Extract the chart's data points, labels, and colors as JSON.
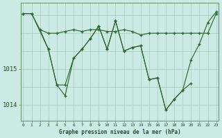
{
  "background_color": "#cceae4",
  "grid_color_major": "#a8c8c0",
  "grid_color_minor": "#b8d8d0",
  "line_color": "#2d6b2d",
  "text_color": "#2d4a2d",
  "xlabel": "Graphe pression niveau de la mer (hPa)",
  "yticks": [
    1014,
    1015
  ],
  "xticks": [
    0,
    1,
    2,
    3,
    4,
    5,
    6,
    7,
    8,
    9,
    10,
    11,
    12,
    13,
    14,
    15,
    16,
    17,
    18,
    19,
    20,
    21,
    22,
    23
  ],
  "ylim": [
    1013.55,
    1016.85
  ],
  "xlim": [
    -0.3,
    23.3
  ],
  "series": [
    {
      "x": [
        0,
        1,
        2,
        3,
        4,
        5,
        6,
        7,
        8,
        9,
        10,
        11,
        12,
        13,
        14,
        15,
        16,
        17,
        18,
        19,
        20,
        21,
        22,
        23
      ],
      "y": [
        1016.55,
        1016.55,
        1016.1,
        1016.0,
        1016.0,
        1016.05,
        1016.1,
        1016.05,
        1016.1,
        1016.1,
        1016.05,
        1016.05,
        1016.1,
        1016.05,
        1015.95,
        1016.0,
        1016.0,
        1016.0,
        1016.0,
        1016.0,
        1016.0,
        1016.0,
        1016.0,
        1016.55
      ]
    },
    {
      "x": [
        0,
        1,
        3,
        4,
        5,
        6,
        7,
        8,
        9,
        10,
        11,
        12,
        13,
        14,
        15,
        16,
        17,
        18,
        19,
        20,
        21,
        22,
        23
      ],
      "y": [
        1016.55,
        1016.55,
        1015.55,
        1014.55,
        1014.55,
        1015.3,
        1015.55,
        1015.85,
        1016.2,
        1015.55,
        1016.35,
        1015.5,
        1015.6,
        1015.65,
        1014.7,
        1014.75,
        1013.85,
        1014.15,
        1014.4,
        1015.25,
        1015.7,
        1016.3,
        1016.6
      ]
    },
    {
      "x": [
        2,
        3,
        4,
        5,
        6,
        7,
        8,
        9,
        10,
        11,
        12,
        13,
        14,
        15,
        16,
        17,
        18,
        19,
        20
      ],
      "y": [
        1016.1,
        1015.55,
        1014.55,
        1014.25,
        1015.3,
        1015.55,
        1015.85,
        1016.2,
        1015.55,
        1016.35,
        1015.5,
        1015.6,
        1015.65,
        1014.7,
        1014.75,
        1013.85,
        1014.15,
        1014.4,
        1014.6
      ]
    }
  ]
}
